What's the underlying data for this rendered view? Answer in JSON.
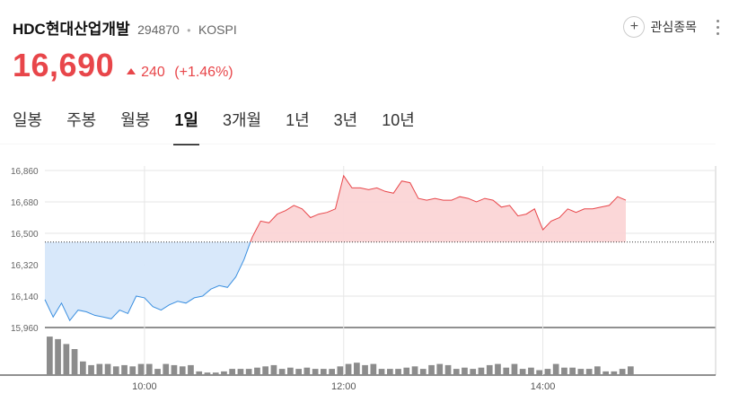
{
  "stock": {
    "name": "HDC현대산업개발",
    "code": "294870",
    "market": "KOSPI",
    "price": "16,690",
    "change": "240",
    "change_pct": "(+1.46%)",
    "up_color": "#e8464a",
    "down_color": "#3a8fe0"
  },
  "actions": {
    "watch_label": "관심종목",
    "plus_icon": "plus-icon",
    "more_icon": "more-vertical-icon"
  },
  "tabs": [
    "일봉",
    "주봉",
    "월봉",
    "1일",
    "3개월",
    "1년",
    "3년",
    "10년"
  ],
  "active_tab": "1일",
  "chart_data": {
    "type": "area",
    "y_ticks": [
      "16,860",
      "16,680",
      "16,500",
      "16,320",
      "16,140",
      "15,960"
    ],
    "ylim": [
      15960,
      16860
    ],
    "x_ticks": [
      "10:00",
      "12:00",
      "14:00"
    ],
    "reference_price": 16450,
    "x": [
      "09:00",
      "09:05",
      "09:10",
      "09:15",
      "09:20",
      "09:25",
      "09:30",
      "09:35",
      "09:40",
      "09:45",
      "09:50",
      "09:55",
      "10:00",
      "10:05",
      "10:10",
      "10:15",
      "10:20",
      "10:25",
      "10:30",
      "10:35",
      "10:40",
      "10:45",
      "10:50",
      "10:55",
      "11:00",
      "11:05",
      "11:10",
      "11:15",
      "11:20",
      "11:25",
      "11:30",
      "11:35",
      "11:40",
      "11:45",
      "11:50",
      "11:55",
      "12:00",
      "12:05",
      "12:10",
      "12:15",
      "12:20",
      "12:25",
      "12:30",
      "12:35",
      "12:40",
      "12:45",
      "12:50",
      "12:55",
      "13:00",
      "13:05",
      "13:10",
      "13:15",
      "13:20",
      "13:25",
      "13:30",
      "13:35",
      "13:40",
      "13:45",
      "13:50",
      "13:55",
      "14:00",
      "14:05",
      "14:10",
      "14:15",
      "14:20",
      "14:25",
      "14:30",
      "14:35",
      "14:40",
      "14:45",
      "14:50"
    ],
    "price": [
      16120,
      16020,
      16100,
      16000,
      16060,
      16050,
      16030,
      16020,
      16010,
      16060,
      16040,
      16140,
      16130,
      16080,
      16060,
      16090,
      16110,
      16100,
      16130,
      16140,
      16180,
      16200,
      16190,
      16250,
      16350,
      16480,
      16570,
      16560,
      16610,
      16630,
      16660,
      16640,
      16590,
      16610,
      16620,
      16640,
      16830,
      16760,
      16760,
      16750,
      16760,
      16740,
      16730,
      16800,
      16790,
      16700,
      16690,
      16700,
      16690,
      16690,
      16710,
      16700,
      16680,
      16700,
      16690,
      16650,
      16660,
      16600,
      16610,
      16640,
      16520,
      16570,
      16590,
      16640,
      16620,
      16640,
      16640,
      16650,
      16660,
      16710,
      16690
    ],
    "volume": [
      31,
      29,
      25,
      21,
      11,
      8,
      9,
      9,
      7,
      8,
      7,
      9,
      9,
      5,
      9,
      8,
      7,
      8,
      3,
      2,
      2,
      3,
      5,
      5,
      5,
      6,
      7,
      8,
      5,
      6,
      5,
      6,
      5,
      5,
      5,
      7,
      9,
      10,
      8,
      9,
      5,
      5,
      5,
      6,
      7,
      5,
      8,
      9,
      8,
      5,
      6,
      5,
      6,
      8,
      9,
      6,
      9,
      5,
      6,
      4,
      5,
      9,
      6,
      6,
      5,
      5,
      7,
      3,
      3,
      5,
      7
    ]
  }
}
